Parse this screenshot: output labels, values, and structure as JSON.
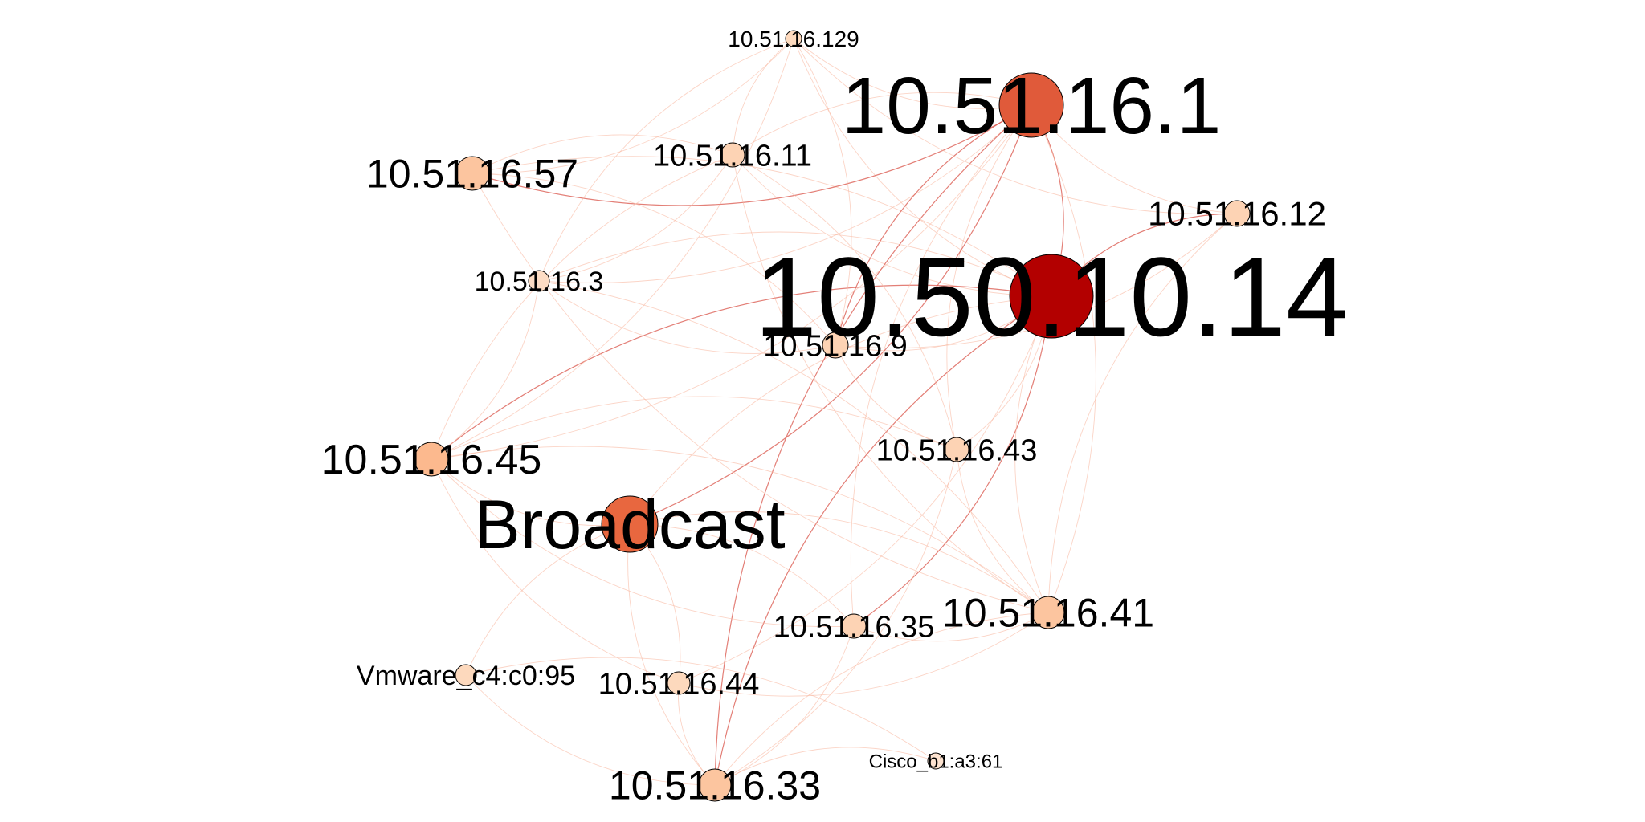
{
  "graph": {
    "nodes": [
      {
        "id": "n1",
        "label": "10.51.16.129",
        "color": "#fdd9bd",
        "weight": 1
      },
      {
        "id": "n2",
        "label": "10.51.16.1",
        "color": "#e05a3a",
        "weight": 7
      },
      {
        "id": "n3",
        "label": "10.51.16.11",
        "color": "#fdd3b4",
        "weight": 2
      },
      {
        "id": "n4",
        "label": "10.51.16.57",
        "color": "#fcc59f",
        "weight": 3
      },
      {
        "id": "n5",
        "label": "10.51.16.12",
        "color": "#fdd3b4",
        "weight": 2
      },
      {
        "id": "n6",
        "label": "10.50.10.14",
        "color": "#b30000",
        "weight": 10
      },
      {
        "id": "n7",
        "label": "10.51.16.3",
        "color": "#fddcc4",
        "weight": 1.5
      },
      {
        "id": "n8",
        "label": "10.51.16.9",
        "color": "#fdd3b4",
        "weight": 2
      },
      {
        "id": "n9",
        "label": "10.51.16.45",
        "color": "#fcb98e",
        "weight": 3
      },
      {
        "id": "n10",
        "label": "10.51.16.43",
        "color": "#fdd3b4",
        "weight": 2
      },
      {
        "id": "n11",
        "label": "Broadcast",
        "color": "#e8673f",
        "weight": 6
      },
      {
        "id": "n12",
        "label": "10.51.16.35",
        "color": "#fdd3b4",
        "weight": 2
      },
      {
        "id": "n13",
        "label": "10.51.16.41",
        "color": "#fcc59f",
        "weight": 3
      },
      {
        "id": "n14",
        "label": "Vmware_c4:c0:95",
        "color": "#fdd9bd",
        "weight": 1.5
      },
      {
        "id": "n15",
        "label": "10.51.16.44",
        "color": "#fdd9bd",
        "weight": 1.5
      },
      {
        "id": "n16",
        "label": "10.51.16.33",
        "color": "#fcc59f",
        "weight": 3
      },
      {
        "id": "n17",
        "label": "Cisco_b1:a3:61",
        "color": "#fde3d0",
        "weight": 1
      }
    ],
    "edges": [
      [
        "n6",
        "n2"
      ],
      [
        "n6",
        "n3"
      ],
      [
        "n6",
        "n4"
      ],
      [
        "n6",
        "n5"
      ],
      [
        "n6",
        "n7"
      ],
      [
        "n6",
        "n8"
      ],
      [
        "n6",
        "n9"
      ],
      [
        "n6",
        "n10"
      ],
      [
        "n6",
        "n11"
      ],
      [
        "n6",
        "n12"
      ],
      [
        "n6",
        "n13"
      ],
      [
        "n6",
        "n15"
      ],
      [
        "n6",
        "n16"
      ],
      [
        "n6",
        "n1"
      ],
      [
        "n2",
        "n3"
      ],
      [
        "n2",
        "n4"
      ],
      [
        "n2",
        "n5"
      ],
      [
        "n2",
        "n7"
      ],
      [
        "n2",
        "n8"
      ],
      [
        "n2",
        "n9"
      ],
      [
        "n2",
        "n10"
      ],
      [
        "n2",
        "n11"
      ],
      [
        "n2",
        "n12"
      ],
      [
        "n2",
        "n13"
      ],
      [
        "n2",
        "n16"
      ],
      [
        "n2",
        "n1"
      ],
      [
        "n1",
        "n3"
      ],
      [
        "n1",
        "n4"
      ],
      [
        "n1",
        "n7"
      ],
      [
        "n1",
        "n9"
      ],
      [
        "n1",
        "n5"
      ],
      [
        "n1",
        "n8"
      ],
      [
        "n3",
        "n4"
      ],
      [
        "n3",
        "n7"
      ],
      [
        "n3",
        "n9"
      ],
      [
        "n3",
        "n10"
      ],
      [
        "n3",
        "n13"
      ],
      [
        "n4",
        "n8"
      ],
      [
        "n4",
        "n13"
      ],
      [
        "n7",
        "n9"
      ],
      [
        "n7",
        "n8"
      ],
      [
        "n7",
        "n13"
      ],
      [
        "n9",
        "n11"
      ],
      [
        "n9",
        "n13"
      ],
      [
        "n9",
        "n12"
      ],
      [
        "n9",
        "n10"
      ],
      [
        "n9",
        "n15"
      ],
      [
        "n11",
        "n13"
      ],
      [
        "n11",
        "n16"
      ],
      [
        "n11",
        "n15"
      ],
      [
        "n11",
        "n14"
      ],
      [
        "n11",
        "n12"
      ],
      [
        "n10",
        "n13"
      ],
      [
        "n10",
        "n16"
      ],
      [
        "n12",
        "n13"
      ],
      [
        "n12",
        "n16"
      ],
      [
        "n13",
        "n16"
      ],
      [
        "n13",
        "n15"
      ],
      [
        "n14",
        "n16"
      ],
      [
        "n14",
        "n17"
      ],
      [
        "n15",
        "n16"
      ],
      [
        "n16",
        "n17"
      ],
      [
        "n5",
        "n13"
      ],
      [
        "n5",
        "n8"
      ],
      [
        "n8",
        "n10"
      ]
    ],
    "edge_color_strong": "#d9544a",
    "edge_color_light": "#f9b8a0"
  }
}
